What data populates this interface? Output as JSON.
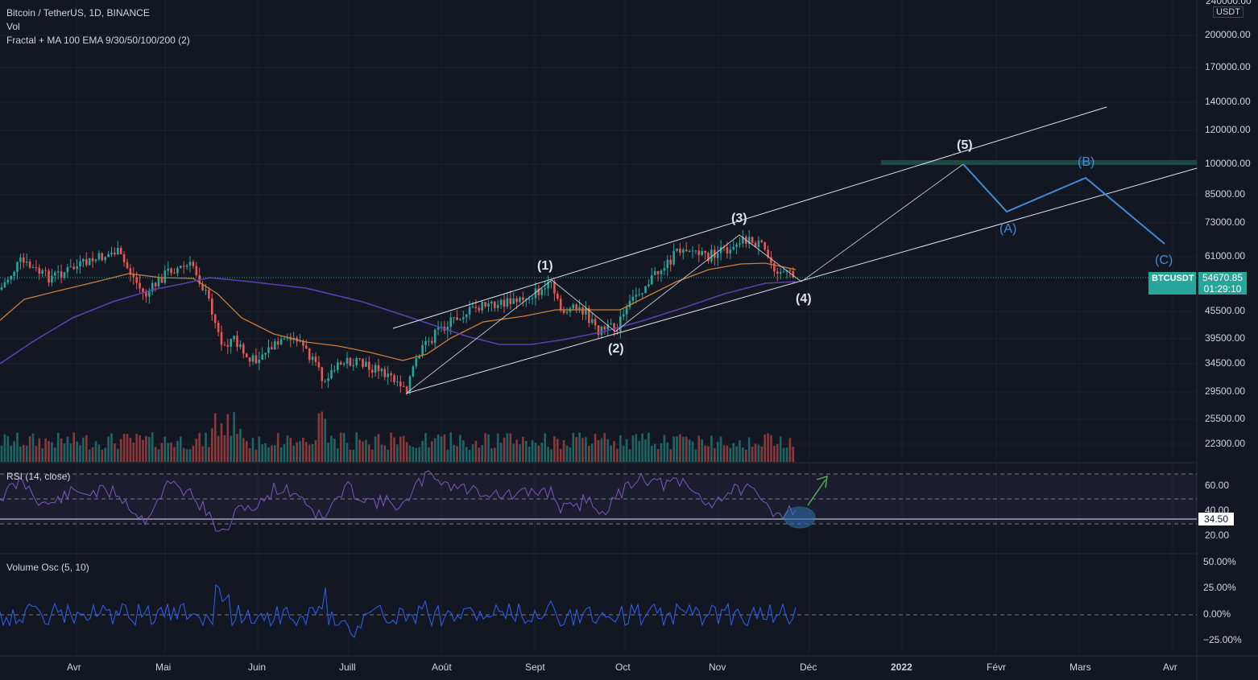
{
  "header": {
    "symbol_line": "Bitcoin / TetherUS, 1D, BINANCE",
    "vol_label": "Vol",
    "indicator_line": "Fractal + MA 100 EMA 9/30/50/100/200 (2)"
  },
  "price_axis": {
    "currency": "USDT",
    "top_label": "240000.00",
    "labels": [
      "200000.00",
      "170000.00",
      "140000.00",
      "120000.00",
      "100000.00",
      "85000.00",
      "73000.00",
      "61000.00",
      "45500.00",
      "39500.00",
      "34500.00",
      "29500.00",
      "25500.00",
      "22300.00"
    ]
  },
  "last_price": {
    "symbol": "BTCUSDT",
    "price": "54670.85",
    "countdown": "01:29:10"
  },
  "rsi": {
    "label": "RSI (14, close)",
    "value": "34.50",
    "axis": [
      "60.00",
      "40.00",
      "20.00"
    ]
  },
  "volume_osc": {
    "label": "Volume Osc (5, 10)",
    "axis": [
      "50.00%",
      "25.00%",
      "0.00%",
      "−25.00%"
    ]
  },
  "time_axis": [
    "Avr",
    "Mai",
    "Juin",
    "Juill",
    "Août",
    "Sept",
    "Oct",
    "Nov",
    "Déc",
    "2022",
    "Févr",
    "Mars",
    "Avr"
  ],
  "waves": {
    "w1": "(1)",
    "w2": "(2)",
    "w3": "(3)",
    "w4": "(4)",
    "w5": "(5)",
    "wa": "(A)",
    "wb": "(B)",
    "wc": "(C)"
  },
  "colors": {
    "background": "#131722",
    "up": "#26a69a",
    "down": "#ef5350",
    "ema_orange": "#c8803a",
    "ma_purple": "#5b3fb0",
    "rsi_purple": "#7e57c2",
    "osc_blue": "#2962ff",
    "wave_blue": "#3d8ddc",
    "resistance_zone": "#1f4a44"
  }
}
